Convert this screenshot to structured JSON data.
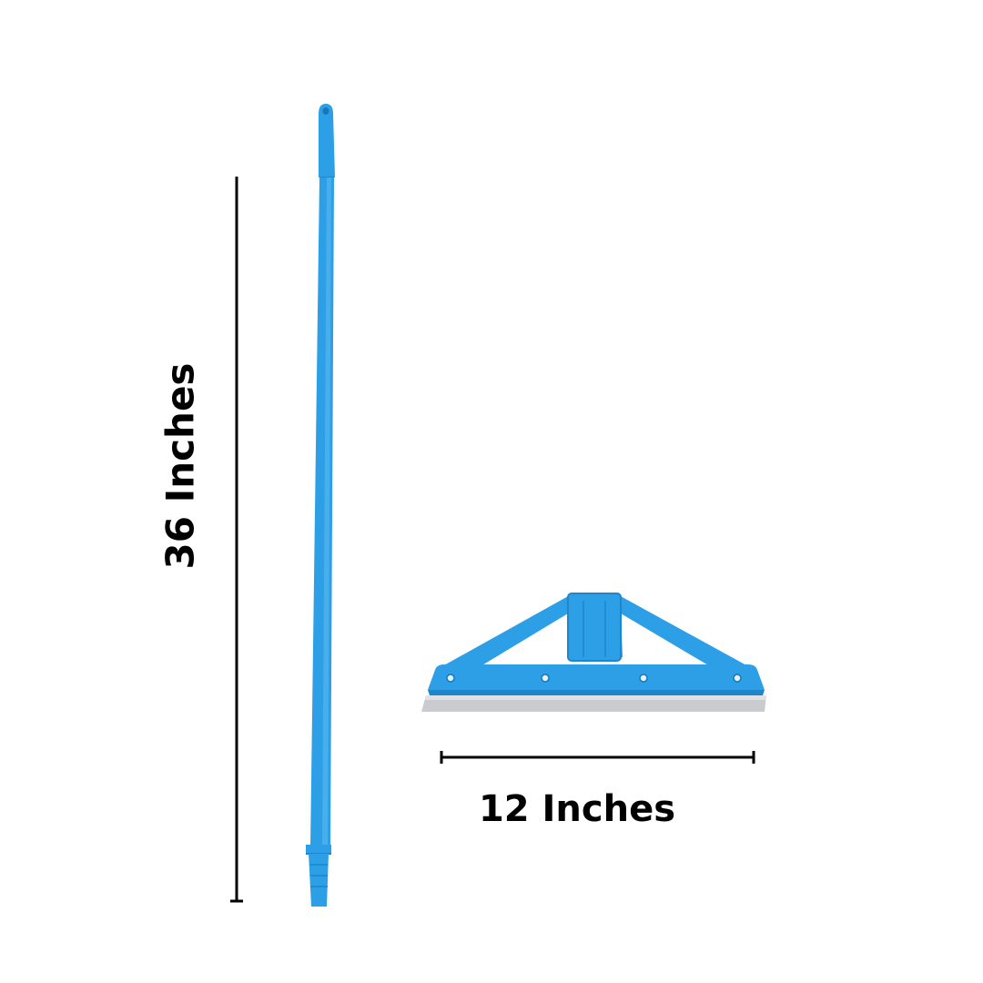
{
  "dimensions": {
    "height_label": "36 Inches",
    "width_label": "12 Inches"
  },
  "colors": {
    "product_blue": "#2d9fe6",
    "product_blue_dark": "#1f86cc",
    "blade_gray": "#c9ccce",
    "line_black": "#000000"
  }
}
